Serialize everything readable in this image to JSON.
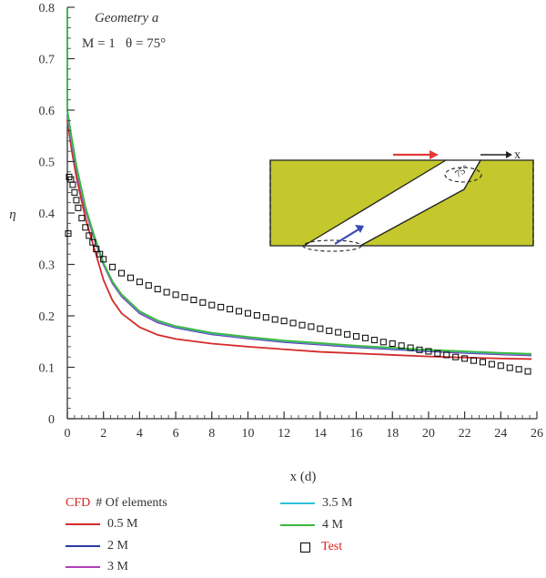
{
  "chart_data": {
    "type": "line",
    "xlabel": "x (d)",
    "ylabel": "η",
    "xlim": [
      0,
      26
    ],
    "ylim": [
      0,
      0.8
    ],
    "xticks": [
      0,
      2,
      4,
      6,
      8,
      10,
      12,
      14,
      16,
      18,
      20,
      22,
      24,
      26
    ],
    "yticks": [
      0,
      0.1,
      0.2,
      0.3,
      0.4,
      0.5,
      0.6,
      0.7,
      0.8
    ],
    "xtick_labels": [
      "0",
      "2",
      "4",
      "6",
      "8",
      "10",
      "12",
      "14",
      "16",
      "18",
      "20",
      "22",
      "24",
      "26"
    ],
    "ytick_labels": [
      "0",
      "0.1",
      "0.2",
      "0.3",
      "0.4",
      "0.5",
      "0.6",
      "0.7",
      "0.8"
    ],
    "annotation": {
      "geometry": "Geometry a",
      "params": "M = 1   θ = 75°"
    },
    "inset": {
      "x_label": "x",
      "angle_label": "75°"
    },
    "legend_header": {
      "cfd": "CFD",
      "elements": "# Of elements"
    },
    "series": [
      {
        "name": "0.5 M",
        "color": "#d42a2a",
        "x": [
          0,
          0.25,
          0.5,
          1,
          1.5,
          2,
          2.5,
          3,
          4,
          5,
          6,
          8,
          10,
          12,
          14,
          16,
          18,
          20,
          22,
          24,
          25.7
        ],
        "y": [
          0.58,
          0.52,
          0.47,
          0.39,
          0.33,
          0.27,
          0.23,
          0.205,
          0.178,
          0.163,
          0.155,
          0.146,
          0.14,
          0.135,
          0.13,
          0.127,
          0.124,
          0.121,
          0.119,
          0.117,
          0.116
        ]
      },
      {
        "name": "2 M",
        "color": "#2b3aa8",
        "x": [
          0,
          0.25,
          0.5,
          1,
          1.5,
          2,
          2.5,
          3,
          4,
          5,
          6,
          8,
          10,
          12,
          14,
          16,
          18,
          20,
          22,
          24,
          25.7
        ],
        "y": [
          0.59,
          0.535,
          0.485,
          0.405,
          0.35,
          0.3,
          0.263,
          0.238,
          0.205,
          0.187,
          0.177,
          0.164,
          0.156,
          0.149,
          0.144,
          0.139,
          0.135,
          0.131,
          0.128,
          0.125,
          0.123
        ]
      },
      {
        "name": "3 M",
        "color": "#b040b8",
        "x": [
          0,
          0.25,
          0.5,
          1,
          1.5,
          2,
          2.5,
          3,
          4,
          5,
          6,
          8,
          10,
          12,
          14,
          16,
          18,
          20,
          22,
          24,
          25.7
        ],
        "y": [
          0.59,
          0.535,
          0.485,
          0.405,
          0.35,
          0.3,
          0.264,
          0.239,
          0.206,
          0.188,
          0.178,
          0.165,
          0.157,
          0.15,
          0.145,
          0.14,
          0.136,
          0.132,
          0.129,
          0.126,
          0.124
        ]
      },
      {
        "name": "3.5 M",
        "color": "#30c0d8",
        "x": [
          0,
          0.25,
          0.5,
          1,
          1.5,
          2,
          2.5,
          3,
          4,
          5,
          6,
          8,
          10,
          12,
          14,
          16,
          18,
          20,
          22,
          24,
          25.7
        ],
        "y": [
          0.595,
          0.54,
          0.49,
          0.41,
          0.353,
          0.302,
          0.266,
          0.241,
          0.208,
          0.19,
          0.179,
          0.166,
          0.158,
          0.151,
          0.146,
          0.141,
          0.137,
          0.133,
          0.13,
          0.127,
          0.125
        ]
      },
      {
        "name": "4 M",
        "color": "#3cb83c",
        "x": [
          0,
          0.25,
          0.5,
          1,
          1.5,
          2,
          2.5,
          3,
          4,
          5,
          6,
          8,
          10,
          12,
          14,
          16,
          18,
          20,
          22,
          24,
          25.7
        ],
        "y": [
          0.6,
          0.545,
          0.493,
          0.412,
          0.355,
          0.303,
          0.267,
          0.242,
          0.209,
          0.191,
          0.18,
          0.167,
          0.159,
          0.152,
          0.147,
          0.142,
          0.138,
          0.134,
          0.131,
          0.128,
          0.126
        ]
      },
      {
        "name": "Test",
        "color": "#000000",
        "marker": "square",
        "x": [
          0.05,
          0.1,
          0.2,
          0.3,
          0.4,
          0.5,
          0.6,
          0.8,
          1.0,
          1.2,
          1.4,
          1.6,
          1.8,
          2.0,
          2.5,
          3,
          3.5,
          4,
          4.5,
          5,
          5.5,
          6,
          6.5,
          7,
          7.5,
          8,
          8.5,
          9,
          9.5,
          10,
          10.5,
          11,
          11.5,
          12,
          12.5,
          13,
          13.5,
          14,
          14.5,
          15,
          15.5,
          16,
          16.5,
          17,
          17.5,
          18,
          18.5,
          19,
          19.5,
          20,
          20.5,
          21,
          21.5,
          22,
          22.5,
          23,
          23.5,
          24,
          24.5,
          25,
          25.5
        ],
        "y": [
          0.36,
          0.47,
          0.465,
          0.455,
          0.44,
          0.425,
          0.41,
          0.39,
          0.372,
          0.356,
          0.343,
          0.33,
          0.32,
          0.31,
          0.295,
          0.283,
          0.274,
          0.266,
          0.259,
          0.252,
          0.246,
          0.241,
          0.236,
          0.231,
          0.226,
          0.221,
          0.217,
          0.213,
          0.209,
          0.205,
          0.201,
          0.197,
          0.193,
          0.19,
          0.186,
          0.182,
          0.179,
          0.175,
          0.171,
          0.168,
          0.164,
          0.16,
          0.157,
          0.153,
          0.149,
          0.146,
          0.142,
          0.138,
          0.134,
          0.131,
          0.127,
          0.124,
          0.12,
          0.117,
          0.113,
          0.11,
          0.106,
          0.103,
          0.099,
          0.096,
          0.092
        ]
      }
    ]
  }
}
